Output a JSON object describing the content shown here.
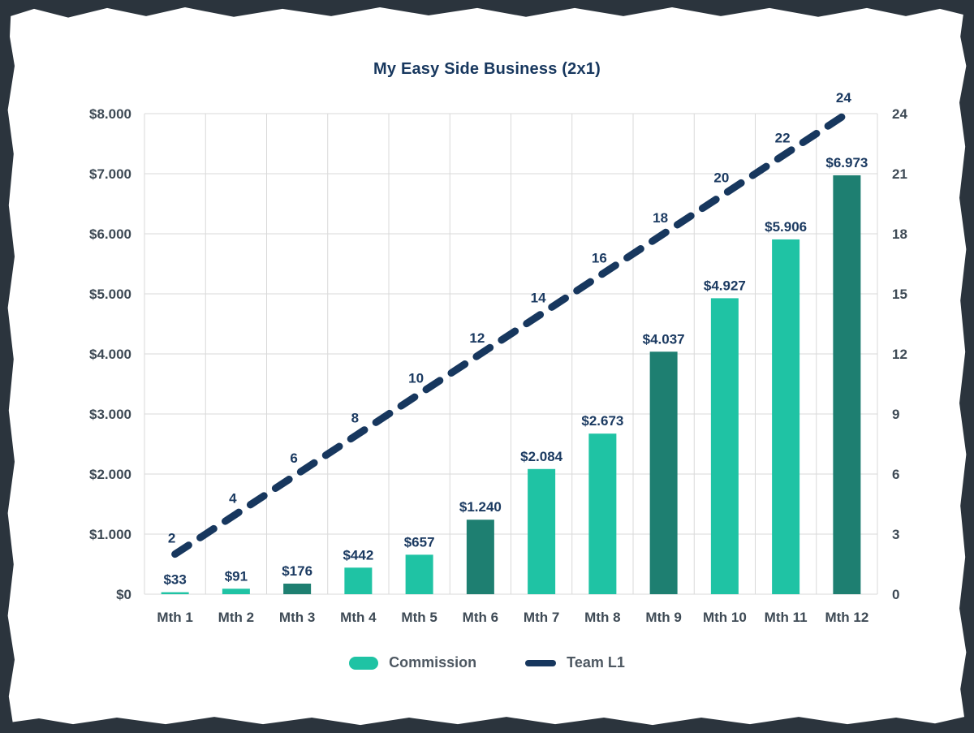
{
  "page": {
    "background_color": "#2b343d",
    "paper_color": "#ffffff"
  },
  "chart_data": {
    "type": "bar",
    "subtype": "bar-and-line-combo",
    "title": "My Easy Side Business (2x1)",
    "categories": [
      "Mth 1",
      "Mth 2",
      "Mth 3",
      "Mth 4",
      "Mth 5",
      "Mth 6",
      "Mth 7",
      "Mth 8",
      "Mth 9",
      "Mth 10",
      "Mth 11",
      "Mth 12"
    ],
    "series": [
      {
        "name": "Commission",
        "type": "bar",
        "axis": "left",
        "values": [
          33,
          91,
          176,
          442,
          657,
          1240,
          2084,
          2673,
          4037,
          4927,
          5906,
          6973
        ],
        "labels": [
          "$33",
          "$91",
          "$176",
          "$442",
          "$657",
          "$1.240",
          "$2.084",
          "$2.673",
          "$4.037",
          "$4.927",
          "$5.906",
          "$6.973"
        ],
        "color": "#1fc3a4",
        "alt_color": "#1e7f71",
        "alt_every": 3
      },
      {
        "name": "Team L1",
        "type": "line",
        "axis": "right",
        "values": [
          2,
          4,
          6,
          8,
          10,
          12,
          14,
          16,
          18,
          20,
          22,
          24
        ],
        "labels": [
          "2",
          "4",
          "6",
          "8",
          "10",
          "12",
          "14",
          "16",
          "18",
          "20",
          "22",
          "24"
        ],
        "color": "#17375e",
        "dashed": true
      }
    ],
    "left_axis": {
      "ticks": [
        "$0",
        "$1.000",
        "$2.000",
        "$3.000",
        "$4.000",
        "$5.000",
        "$6.000",
        "$7.000",
        "$8.000"
      ],
      "min": 0,
      "max": 8000,
      "step": 1000
    },
    "right_axis": {
      "ticks": [
        "0",
        "3",
        "6",
        "9",
        "12",
        "15",
        "18",
        "21",
        "24"
      ],
      "min": 0,
      "max": 24,
      "step": 3
    },
    "grid": true,
    "legend_position": "bottom",
    "legend": [
      {
        "label": "Commission",
        "swatch": "bar",
        "color": "#1fc3a4"
      },
      {
        "label": "Team L1",
        "swatch": "line",
        "color": "#17375e"
      }
    ],
    "colors": {
      "title": "#17375e",
      "data_label": "#1b3a61",
      "axis_label": "#3e4a55",
      "gridline": "#d9d9d9",
      "legend_text": "#4e5862",
      "bar_bright": "#1fc3a4",
      "bar_dark": "#1e7f71",
      "line": "#17375e"
    }
  }
}
